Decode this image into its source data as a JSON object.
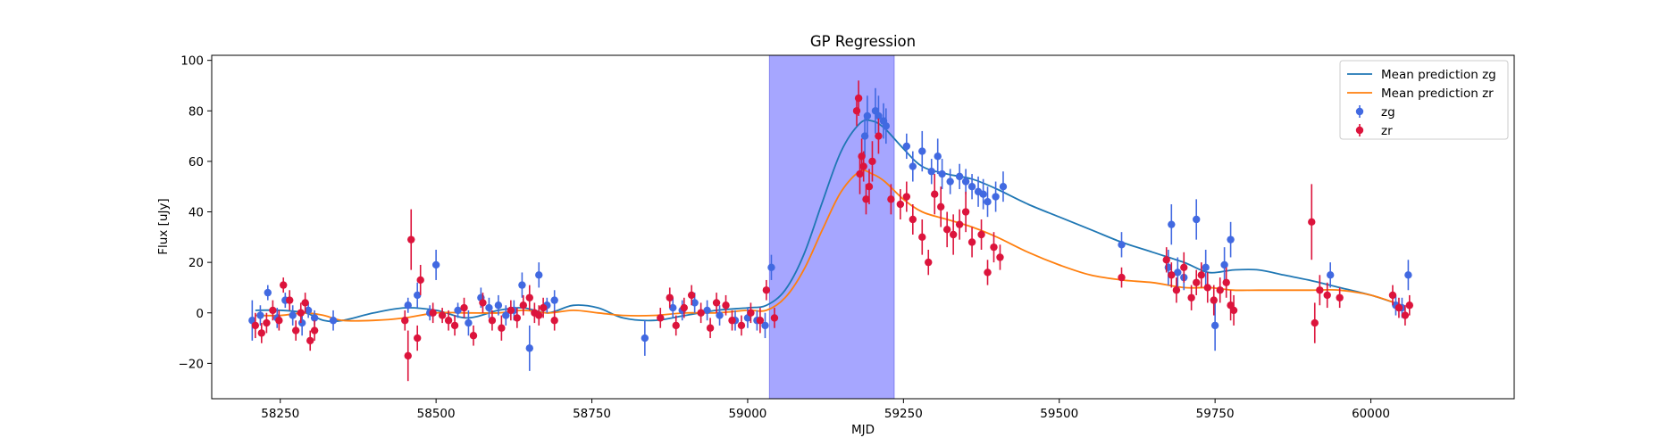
{
  "chart_data": {
    "type": "scatter",
    "title": "GP Regression",
    "xlabel": "MJD",
    "ylabel": "Flux [uJy]",
    "xlim": [
      58140,
      60230
    ],
    "ylim": [
      -34,
      102
    ],
    "xticks": [
      58250,
      58500,
      58750,
      59000,
      59250,
      59500,
      59750,
      60000
    ],
    "yticks": [
      -20,
      0,
      20,
      40,
      60,
      80,
      100
    ],
    "grid": false,
    "legend_position": "upper-right",
    "shaded_region": {
      "x0": 59035,
      "x1": 59235,
      "color": "#a6a6ff"
    },
    "colors": {
      "zg_points": "#4169e1",
      "zr_points": "#dc143c",
      "zg_line": "#1f77b4",
      "zr_line": "#ff7f0e"
    },
    "legend": [
      {
        "label": "Mean prediction zg",
        "kind": "line",
        "color": "#1f77b4"
      },
      {
        "label": "Mean prediction zr",
        "kind": "line",
        "color": "#ff7f0e"
      },
      {
        "label": "zg",
        "kind": "errorbar",
        "color": "#4169e1"
      },
      {
        "label": "zr",
        "kind": "errorbar",
        "color": "#dc143c"
      }
    ],
    "lines": [
      {
        "name": "Mean prediction zg",
        "color": "#1f77b4",
        "x": [
          58210,
          58250,
          58290,
          58320,
          58350,
          58400,
          58450,
          58500,
          58550,
          58600,
          58640,
          58680,
          58720,
          58760,
          58800,
          58850,
          58900,
          58950,
          59000,
          59030,
          59060,
          59090,
          59120,
          59150,
          59180,
          59200,
          59220,
          59250,
          59280,
          59320,
          59360,
          59400,
          59450,
          59500,
          59550,
          59600,
          59650,
          59700,
          59740,
          59780,
          59820,
          59860,
          59900,
          59950,
          60000,
          60050
        ],
        "y": [
          1,
          1,
          0,
          -3,
          -3,
          0,
          2,
          1,
          -2,
          1,
          2,
          0,
          3,
          2,
          -2,
          -3,
          -1,
          1,
          2,
          3,
          9,
          23,
          44,
          64,
          75,
          76,
          73,
          65,
          58,
          55,
          53,
          49,
          43,
          38,
          33,
          28,
          24,
          20,
          16,
          17,
          17,
          15,
          13,
          10,
          7,
          3
        ]
      },
      {
        "name": "Mean prediction zr",
        "color": "#ff7f0e",
        "x": [
          58210,
          58250,
          58290,
          58320,
          58350,
          58400,
          58450,
          58500,
          58550,
          58600,
          58640,
          58680,
          58720,
          58760,
          58800,
          58850,
          58900,
          58950,
          59000,
          59030,
          59060,
          59090,
          59120,
          59150,
          59180,
          59200,
          59220,
          59250,
          59280,
          59320,
          59360,
          59400,
          59450,
          59500,
          59550,
          59600,
          59650,
          59700,
          59740,
          59780,
          59820,
          59860,
          59900,
          59950,
          60000,
          60050
        ],
        "y": [
          -1,
          -1,
          0,
          -1,
          -3,
          -3,
          -2,
          0,
          0,
          0,
          1,
          0,
          1,
          0,
          -1,
          -1,
          0,
          0,
          1,
          1,
          6,
          17,
          33,
          48,
          56,
          55,
          52,
          45,
          40,
          37,
          34,
          30,
          24,
          19,
          15,
          13,
          12,
          10,
          10,
          9,
          9,
          9,
          9,
          9,
          7,
          3
        ]
      }
    ],
    "series": [
      {
        "name": "zg",
        "color": "#4169e1",
        "x": [
          58205,
          58218,
          58230,
          58245,
          58258,
          58270,
          58285,
          58295,
          58305,
          58335,
          58455,
          58470,
          58490,
          58500,
          58535,
          58552,
          58572,
          58585,
          58600,
          58612,
          58625,
          58638,
          58650,
          58665,
          58678,
          58690,
          58835,
          58880,
          58895,
          58915,
          58935,
          58955,
          58980,
          59000,
          59015,
          59028,
          59038,
          59188,
          59192,
          59205,
          59210,
          59218,
          59222,
          59255,
          59265,
          59280,
          59295,
          59305,
          59312,
          59325,
          59340,
          59350,
          59360,
          59370,
          59378,
          59385,
          59398,
          59410,
          59600,
          59675,
          59680,
          59690,
          59700,
          59720,
          59735,
          59750,
          59765,
          59775,
          59935,
          60040,
          60050,
          60060
        ],
        "y": [
          -3,
          -1,
          8,
          -2,
          5,
          -1,
          -4,
          1,
          -2,
          -3,
          3,
          7,
          0,
          19,
          1,
          -4,
          6,
          2,
          3,
          -1,
          1,
          11,
          -14,
          15,
          3,
          5,
          -10,
          2,
          1,
          4,
          1,
          -1,
          -3,
          -2,
          -3,
          -5,
          18,
          70,
          78,
          80,
          78,
          76,
          74,
          66,
          58,
          64,
          56,
          62,
          55,
          52,
          54,
          52,
          50,
          48,
          47,
          44,
          46,
          50,
          27,
          18,
          35,
          16,
          14,
          37,
          18,
          -5,
          19,
          29,
          15,
          3,
          2,
          15
        ],
        "err": [
          8,
          4,
          3,
          4,
          3,
          4,
          5,
          3,
          3,
          4,
          3,
          5,
          3,
          6,
          3,
          5,
          4,
          4,
          4,
          4,
          4,
          5,
          9,
          5,
          3,
          4,
          7,
          4,
          4,
          4,
          4,
          4,
          4,
          4,
          4,
          5,
          5,
          8,
          8,
          9,
          8,
          7,
          7,
          5,
          6,
          8,
          5,
          7,
          6,
          5,
          5,
          5,
          5,
          6,
          6,
          6,
          6,
          6,
          5,
          7,
          8,
          6,
          5,
          8,
          7,
          10,
          7,
          7,
          5,
          4,
          4,
          6
        ]
      },
      {
        "name": "zr",
        "color": "#dc143c",
        "x": [
          58210,
          58220,
          58228,
          58238,
          58248,
          58255,
          58265,
          58275,
          58283,
          58290,
          58298,
          58305,
          58450,
          58455,
          58460,
          58470,
          58475,
          58495,
          58510,
          58520,
          58530,
          58545,
          58560,
          58575,
          58590,
          58605,
          58620,
          58630,
          58640,
          58650,
          58658,
          58665,
          58672,
          58690,
          58860,
          58875,
          58885,
          58898,
          58910,
          58925,
          58940,
          58950,
          58965,
          58975,
          58990,
          59005,
          59020,
          59030,
          59043,
          59175,
          59178,
          59180,
          59183,
          59186,
          59190,
          59195,
          59200,
          59210,
          59230,
          59245,
          59255,
          59265,
          59280,
          59290,
          59300,
          59310,
          59320,
          59330,
          59340,
          59350,
          59360,
          59375,
          59385,
          59395,
          59405,
          59600,
          59672,
          59680,
          59688,
          59700,
          59712,
          59720,
          59728,
          59738,
          59748,
          59758,
          59768,
          59775,
          59780,
          59905,
          59910,
          59918,
          59930,
          59950,
          60035,
          60045,
          60055,
          60062
        ],
        "y": [
          -5,
          -8,
          -4,
          1,
          -3,
          11,
          5,
          -7,
          0,
          4,
          -11,
          -7,
          -3,
          -17,
          29,
          -10,
          13,
          0,
          -1,
          -3,
          -5,
          2,
          -9,
          4,
          -3,
          -6,
          1,
          -2,
          3,
          6,
          0,
          -1,
          2,
          -3,
          -2,
          6,
          -5,
          2,
          7,
          0,
          -6,
          4,
          3,
          -3,
          -5,
          0,
          -3,
          9,
          -2,
          80,
          85,
          55,
          62,
          58,
          45,
          50,
          60,
          70,
          45,
          43,
          46,
          37,
          30,
          20,
          47,
          42,
          33,
          31,
          35,
          40,
          28,
          31,
          16,
          26,
          22,
          14,
          21,
          15,
          9,
          18,
          6,
          12,
          15,
          10,
          5,
          9,
          12,
          3,
          1,
          36,
          -4,
          9,
          7,
          6,
          7,
          2,
          -1,
          3
        ],
        "err": [
          5,
          4,
          4,
          4,
          4,
          3,
          4,
          4,
          4,
          4,
          4,
          4,
          4,
          10,
          12,
          5,
          6,
          4,
          3,
          4,
          4,
          4,
          4,
          4,
          4,
          5,
          4,
          4,
          4,
          5,
          4,
          4,
          4,
          4,
          4,
          4,
          4,
          4,
          4,
          4,
          4,
          4,
          4,
          4,
          4,
          4,
          5,
          4,
          4,
          6,
          7,
          8,
          7,
          6,
          6,
          7,
          8,
          7,
          6,
          6,
          6,
          6,
          7,
          5,
          8,
          8,
          7,
          8,
          6,
          8,
          6,
          6,
          5,
          6,
          5,
          4,
          5,
          5,
          5,
          6,
          5,
          5,
          5,
          6,
          6,
          5,
          6,
          6,
          6,
          15,
          8,
          6,
          5,
          4,
          4,
          4,
          4,
          4
        ]
      }
    ]
  }
}
